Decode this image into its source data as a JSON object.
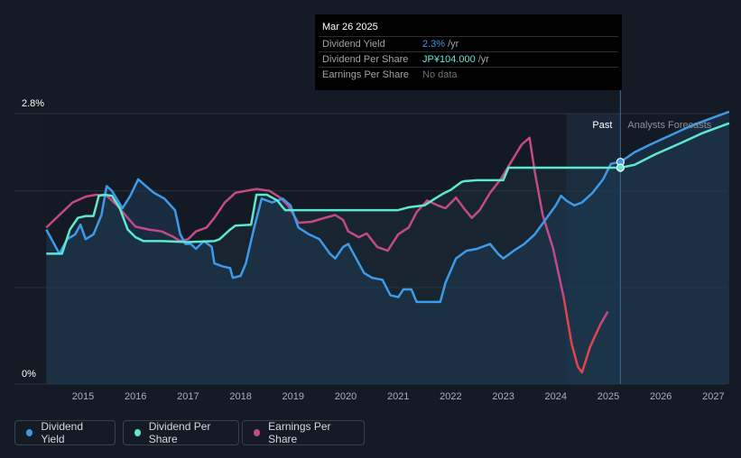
{
  "tooltip": {
    "date": "Mar 26 2025",
    "rows": [
      {
        "label": "Dividend Yield",
        "value": "2.3%",
        "unit": "/yr",
        "color": "#3d9ae8"
      },
      {
        "label": "Dividend Per Share",
        "value": "JP¥104.000",
        "unit": "/yr",
        "color": "#5ee8d0"
      },
      {
        "label": "Earnings Per Share",
        "value": "No data",
        "unit": "",
        "color": "#6b7078"
      }
    ]
  },
  "labels": {
    "past": "Past",
    "forecast": "Analysts Forecasts"
  },
  "legend": [
    {
      "label": "Dividend Yield",
      "color": "#3d9ae8"
    },
    {
      "label": "Dividend Per Share",
      "color": "#5ee8d0"
    },
    {
      "label": "Earnings Per Share",
      "color": "#c44a86"
    }
  ],
  "chart_data": {
    "type": "line",
    "y_tick_labels": [
      "2.8%",
      "0%"
    ],
    "ylim": [
      0,
      2.8
    ],
    "xlim": [
      2014.3,
      2027.3
    ],
    "x_tick_labels": [
      "2015",
      "2016",
      "2017",
      "2018",
      "2019",
      "2020",
      "2021",
      "2022",
      "2023",
      "2024",
      "2025",
      "2026",
      "2027"
    ],
    "past_forecast_boundary": 2025.23,
    "grid": true,
    "legend_position": "bottom-left",
    "colors": {
      "yield": "#3d9ae8",
      "dps": "#5ee8d0",
      "eps": "#c44a86",
      "eps_low": "#e0454c"
    },
    "series": [
      {
        "name": "Dividend Yield",
        "points": [
          [
            2014.3,
            1.6
          ],
          [
            2014.45,
            1.45
          ],
          [
            2014.55,
            1.35
          ],
          [
            2014.7,
            1.5
          ],
          [
            2014.85,
            1.55
          ],
          [
            2014.95,
            1.65
          ],
          [
            2015.05,
            1.5
          ],
          [
            2015.2,
            1.55
          ],
          [
            2015.35,
            1.75
          ],
          [
            2015.45,
            2.05
          ],
          [
            2015.55,
            2.0
          ],
          [
            2015.75,
            1.82
          ],
          [
            2015.9,
            1.95
          ],
          [
            2016.05,
            2.12
          ],
          [
            2016.2,
            2.05
          ],
          [
            2016.35,
            1.98
          ],
          [
            2016.55,
            1.92
          ],
          [
            2016.75,
            1.8
          ],
          [
            2016.85,
            1.55
          ],
          [
            2016.95,
            1.45
          ],
          [
            2017.05,
            1.45
          ],
          [
            2017.15,
            1.4
          ],
          [
            2017.3,
            1.48
          ],
          [
            2017.45,
            1.42
          ],
          [
            2017.5,
            1.25
          ],
          [
            2017.65,
            1.22
          ],
          [
            2017.8,
            1.2
          ],
          [
            2017.85,
            1.1
          ],
          [
            2018.0,
            1.12
          ],
          [
            2018.1,
            1.25
          ],
          [
            2018.25,
            1.6
          ],
          [
            2018.4,
            1.92
          ],
          [
            2018.6,
            1.88
          ],
          [
            2018.8,
            1.92
          ],
          [
            2018.95,
            1.85
          ],
          [
            2019.1,
            1.62
          ],
          [
            2019.3,
            1.55
          ],
          [
            2019.5,
            1.5
          ],
          [
            2019.7,
            1.35
          ],
          [
            2019.8,
            1.3
          ],
          [
            2019.95,
            1.42
          ],
          [
            2020.05,
            1.45
          ],
          [
            2020.2,
            1.3
          ],
          [
            2020.35,
            1.15
          ],
          [
            2020.5,
            1.1
          ],
          [
            2020.7,
            1.08
          ],
          [
            2020.85,
            0.92
          ],
          [
            2021.0,
            0.9
          ],
          [
            2021.1,
            0.98
          ],
          [
            2021.25,
            0.98
          ],
          [
            2021.35,
            0.85
          ],
          [
            2021.55,
            0.85
          ],
          [
            2021.8,
            0.85
          ],
          [
            2021.9,
            1.05
          ],
          [
            2022.1,
            1.3
          ],
          [
            2022.3,
            1.38
          ],
          [
            2022.5,
            1.4
          ],
          [
            2022.75,
            1.45
          ],
          [
            2022.9,
            1.35
          ],
          [
            2023.0,
            1.3
          ],
          [
            2023.2,
            1.38
          ],
          [
            2023.4,
            1.45
          ],
          [
            2023.6,
            1.55
          ],
          [
            2023.8,
            1.7
          ],
          [
            2024.0,
            1.85
          ],
          [
            2024.1,
            1.95
          ],
          [
            2024.2,
            1.9
          ],
          [
            2024.35,
            1.85
          ],
          [
            2024.5,
            1.88
          ],
          [
            2024.7,
            1.98
          ],
          [
            2024.9,
            2.12
          ],
          [
            2025.05,
            2.28
          ],
          [
            2025.23,
            2.3
          ],
          [
            2025.5,
            2.4
          ],
          [
            2025.8,
            2.48
          ],
          [
            2026.2,
            2.58
          ],
          [
            2026.6,
            2.68
          ],
          [
            2027.0,
            2.76
          ],
          [
            2027.3,
            2.82
          ]
        ]
      },
      {
        "name": "Dividend Per Share",
        "points": [
          [
            2014.3,
            1.35
          ],
          [
            2014.6,
            1.35
          ],
          [
            2014.75,
            1.6
          ],
          [
            2014.9,
            1.72
          ],
          [
            2015.05,
            1.74
          ],
          [
            2015.2,
            1.74
          ],
          [
            2015.3,
            1.95
          ],
          [
            2015.4,
            1.96
          ],
          [
            2015.55,
            1.95
          ],
          [
            2015.7,
            1.82
          ],
          [
            2015.85,
            1.6
          ],
          [
            2016.0,
            1.52
          ],
          [
            2016.15,
            1.48
          ],
          [
            2016.5,
            1.48
          ],
          [
            2017.0,
            1.47
          ],
          [
            2017.5,
            1.48
          ],
          [
            2017.6,
            1.5
          ],
          [
            2017.8,
            1.6
          ],
          [
            2017.9,
            1.64
          ],
          [
            2018.2,
            1.65
          ],
          [
            2018.3,
            1.96
          ],
          [
            2018.5,
            1.96
          ],
          [
            2018.7,
            1.9
          ],
          [
            2018.8,
            1.83
          ],
          [
            2018.85,
            1.8
          ],
          [
            2019.5,
            1.8
          ],
          [
            2020.0,
            1.8
          ],
          [
            2020.5,
            1.8
          ],
          [
            2021.0,
            1.8
          ],
          [
            2021.2,
            1.83
          ],
          [
            2021.5,
            1.85
          ],
          [
            2021.7,
            1.92
          ],
          [
            2021.85,
            1.97
          ],
          [
            2022.0,
            2.01
          ],
          [
            2022.2,
            2.09
          ],
          [
            2022.25,
            2.1
          ],
          [
            2022.5,
            2.11
          ],
          [
            2022.9,
            2.11
          ],
          [
            2023.0,
            2.11
          ],
          [
            2023.1,
            2.24
          ],
          [
            2023.5,
            2.24
          ],
          [
            2024.0,
            2.24
          ],
          [
            2024.5,
            2.24
          ],
          [
            2025.0,
            2.24
          ],
          [
            2025.23,
            2.24
          ],
          [
            2025.5,
            2.27
          ],
          [
            2025.9,
            2.38
          ],
          [
            2026.4,
            2.5
          ],
          [
            2026.8,
            2.6
          ],
          [
            2027.3,
            2.7
          ]
        ]
      },
      {
        "name": "Earnings Per Share",
        "points": [
          [
            2014.3,
            1.62
          ],
          [
            2014.55,
            1.75
          ],
          [
            2014.8,
            1.88
          ],
          [
            2015.05,
            1.94
          ],
          [
            2015.25,
            1.96
          ],
          [
            2015.45,
            1.95
          ],
          [
            2015.65,
            1.85
          ],
          [
            2015.85,
            1.72
          ],
          [
            2016.0,
            1.63
          ],
          [
            2016.25,
            1.6
          ],
          [
            2016.5,
            1.58
          ],
          [
            2016.7,
            1.53
          ],
          [
            2016.85,
            1.48
          ],
          [
            2017.0,
            1.5
          ],
          [
            2017.15,
            1.58
          ],
          [
            2017.35,
            1.62
          ],
          [
            2017.5,
            1.72
          ],
          [
            2017.7,
            1.88
          ],
          [
            2017.9,
            1.98
          ],
          [
            2018.1,
            2.0
          ],
          [
            2018.3,
            2.02
          ],
          [
            2018.55,
            2.0
          ],
          [
            2018.75,
            1.93
          ],
          [
            2018.9,
            1.85
          ],
          [
            2019.1,
            1.67
          ],
          [
            2019.35,
            1.68
          ],
          [
            2019.6,
            1.72
          ],
          [
            2019.8,
            1.75
          ],
          [
            2019.95,
            1.7
          ],
          [
            2020.05,
            1.58
          ],
          [
            2020.25,
            1.52
          ],
          [
            2020.4,
            1.56
          ],
          [
            2020.6,
            1.42
          ],
          [
            2020.8,
            1.38
          ],
          [
            2021.0,
            1.55
          ],
          [
            2021.2,
            1.62
          ],
          [
            2021.35,
            1.78
          ],
          [
            2021.55,
            1.9
          ],
          [
            2021.75,
            1.85
          ],
          [
            2021.9,
            1.82
          ],
          [
            2022.1,
            1.93
          ],
          [
            2022.25,
            1.82
          ],
          [
            2022.4,
            1.72
          ],
          [
            2022.55,
            1.8
          ],
          [
            2022.75,
            1.98
          ],
          [
            2022.95,
            2.12
          ],
          [
            2023.15,
            2.3
          ],
          [
            2023.35,
            2.48
          ],
          [
            2023.5,
            2.55
          ],
          [
            2023.6,
            2.2
          ],
          [
            2023.75,
            1.75
          ],
          [
            2023.95,
            1.4
          ],
          [
            2024.15,
            0.9
          ],
          [
            2024.3,
            0.42
          ],
          [
            2024.42,
            0.18
          ],
          [
            2024.5,
            0.12
          ],
          [
            2024.65,
            0.38
          ],
          [
            2024.85,
            0.62
          ],
          [
            2024.99,
            0.75
          ]
        ]
      }
    ]
  }
}
